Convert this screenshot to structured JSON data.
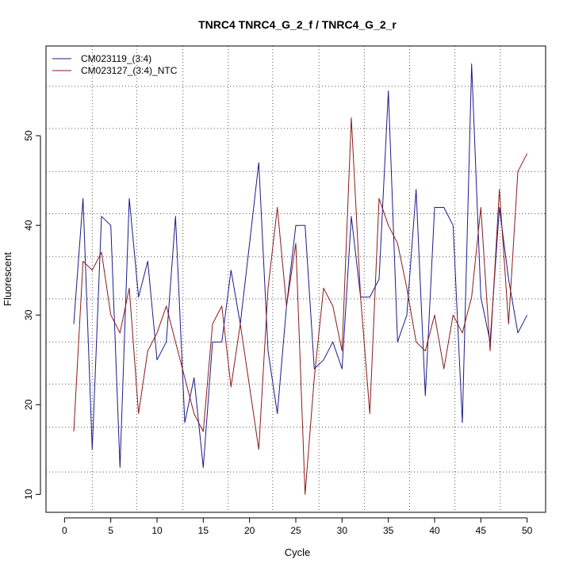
{
  "chart_data": {
    "type": "line",
    "title": "TNRC4  TNRC4_G_2_f / TNRC4_G_2_r",
    "xlabel": "Cycle",
    "ylabel": "Fluorescent",
    "xlim": [
      -2,
      52
    ],
    "ylim": [
      8,
      60
    ],
    "x_ticks": [
      0,
      5,
      10,
      15,
      20,
      25,
      30,
      35,
      40,
      45,
      50
    ],
    "y_ticks": [
      10,
      20,
      30,
      40,
      50
    ],
    "vertical_gridlines": [
      3,
      7.8,
      12.8,
      17.7,
      22.5,
      27.5,
      32.4,
      37.3,
      42.2,
      47.1
    ],
    "horizontal_gridlines": [
      12.5,
      17.5,
      22.3,
      27,
      31.8,
      36.5,
      41.3,
      46,
      50.8,
      55.5
    ],
    "grid": true,
    "legend_position": "top-left",
    "x": [
      1,
      2,
      3,
      4,
      5,
      6,
      7,
      8,
      9,
      10,
      11,
      12,
      13,
      14,
      15,
      16,
      17,
      18,
      19,
      20,
      21,
      22,
      23,
      24,
      25,
      26,
      27,
      28,
      29,
      30,
      31,
      32,
      33,
      34,
      35,
      36,
      37,
      38,
      39,
      40,
      41,
      42,
      43,
      44,
      45,
      46,
      47,
      48,
      49,
      50
    ],
    "series": [
      {
        "name": "CM023119_(3:4)",
        "color": "#1a1a8c",
        "values": [
          29,
          43,
          15,
          41,
          40,
          13,
          43,
          32,
          36,
          25,
          27,
          41,
          18,
          23,
          13,
          27,
          27,
          35,
          29,
          38,
          47,
          26,
          19,
          31,
          40,
          40,
          24,
          25,
          27,
          24,
          41,
          32,
          32,
          34,
          55,
          27,
          30,
          44,
          21,
          42,
          42,
          40,
          18,
          58,
          32,
          27,
          42,
          34,
          28,
          30
        ]
      },
      {
        "name": "CM023127_(3:4)_NTC",
        "color": "#8b1a1a",
        "values": [
          17,
          36,
          35,
          37,
          30,
          28,
          33,
          19,
          26,
          28,
          31,
          27,
          23,
          19,
          17,
          29,
          31,
          22,
          29,
          22,
          15,
          33,
          42,
          31,
          38,
          10,
          23,
          33,
          31,
          26,
          52,
          32,
          19,
          43,
          40,
          38,
          33,
          27,
          26,
          30,
          24,
          30,
          28,
          32,
          42,
          26,
          44,
          29,
          46,
          48
        ]
      }
    ]
  }
}
